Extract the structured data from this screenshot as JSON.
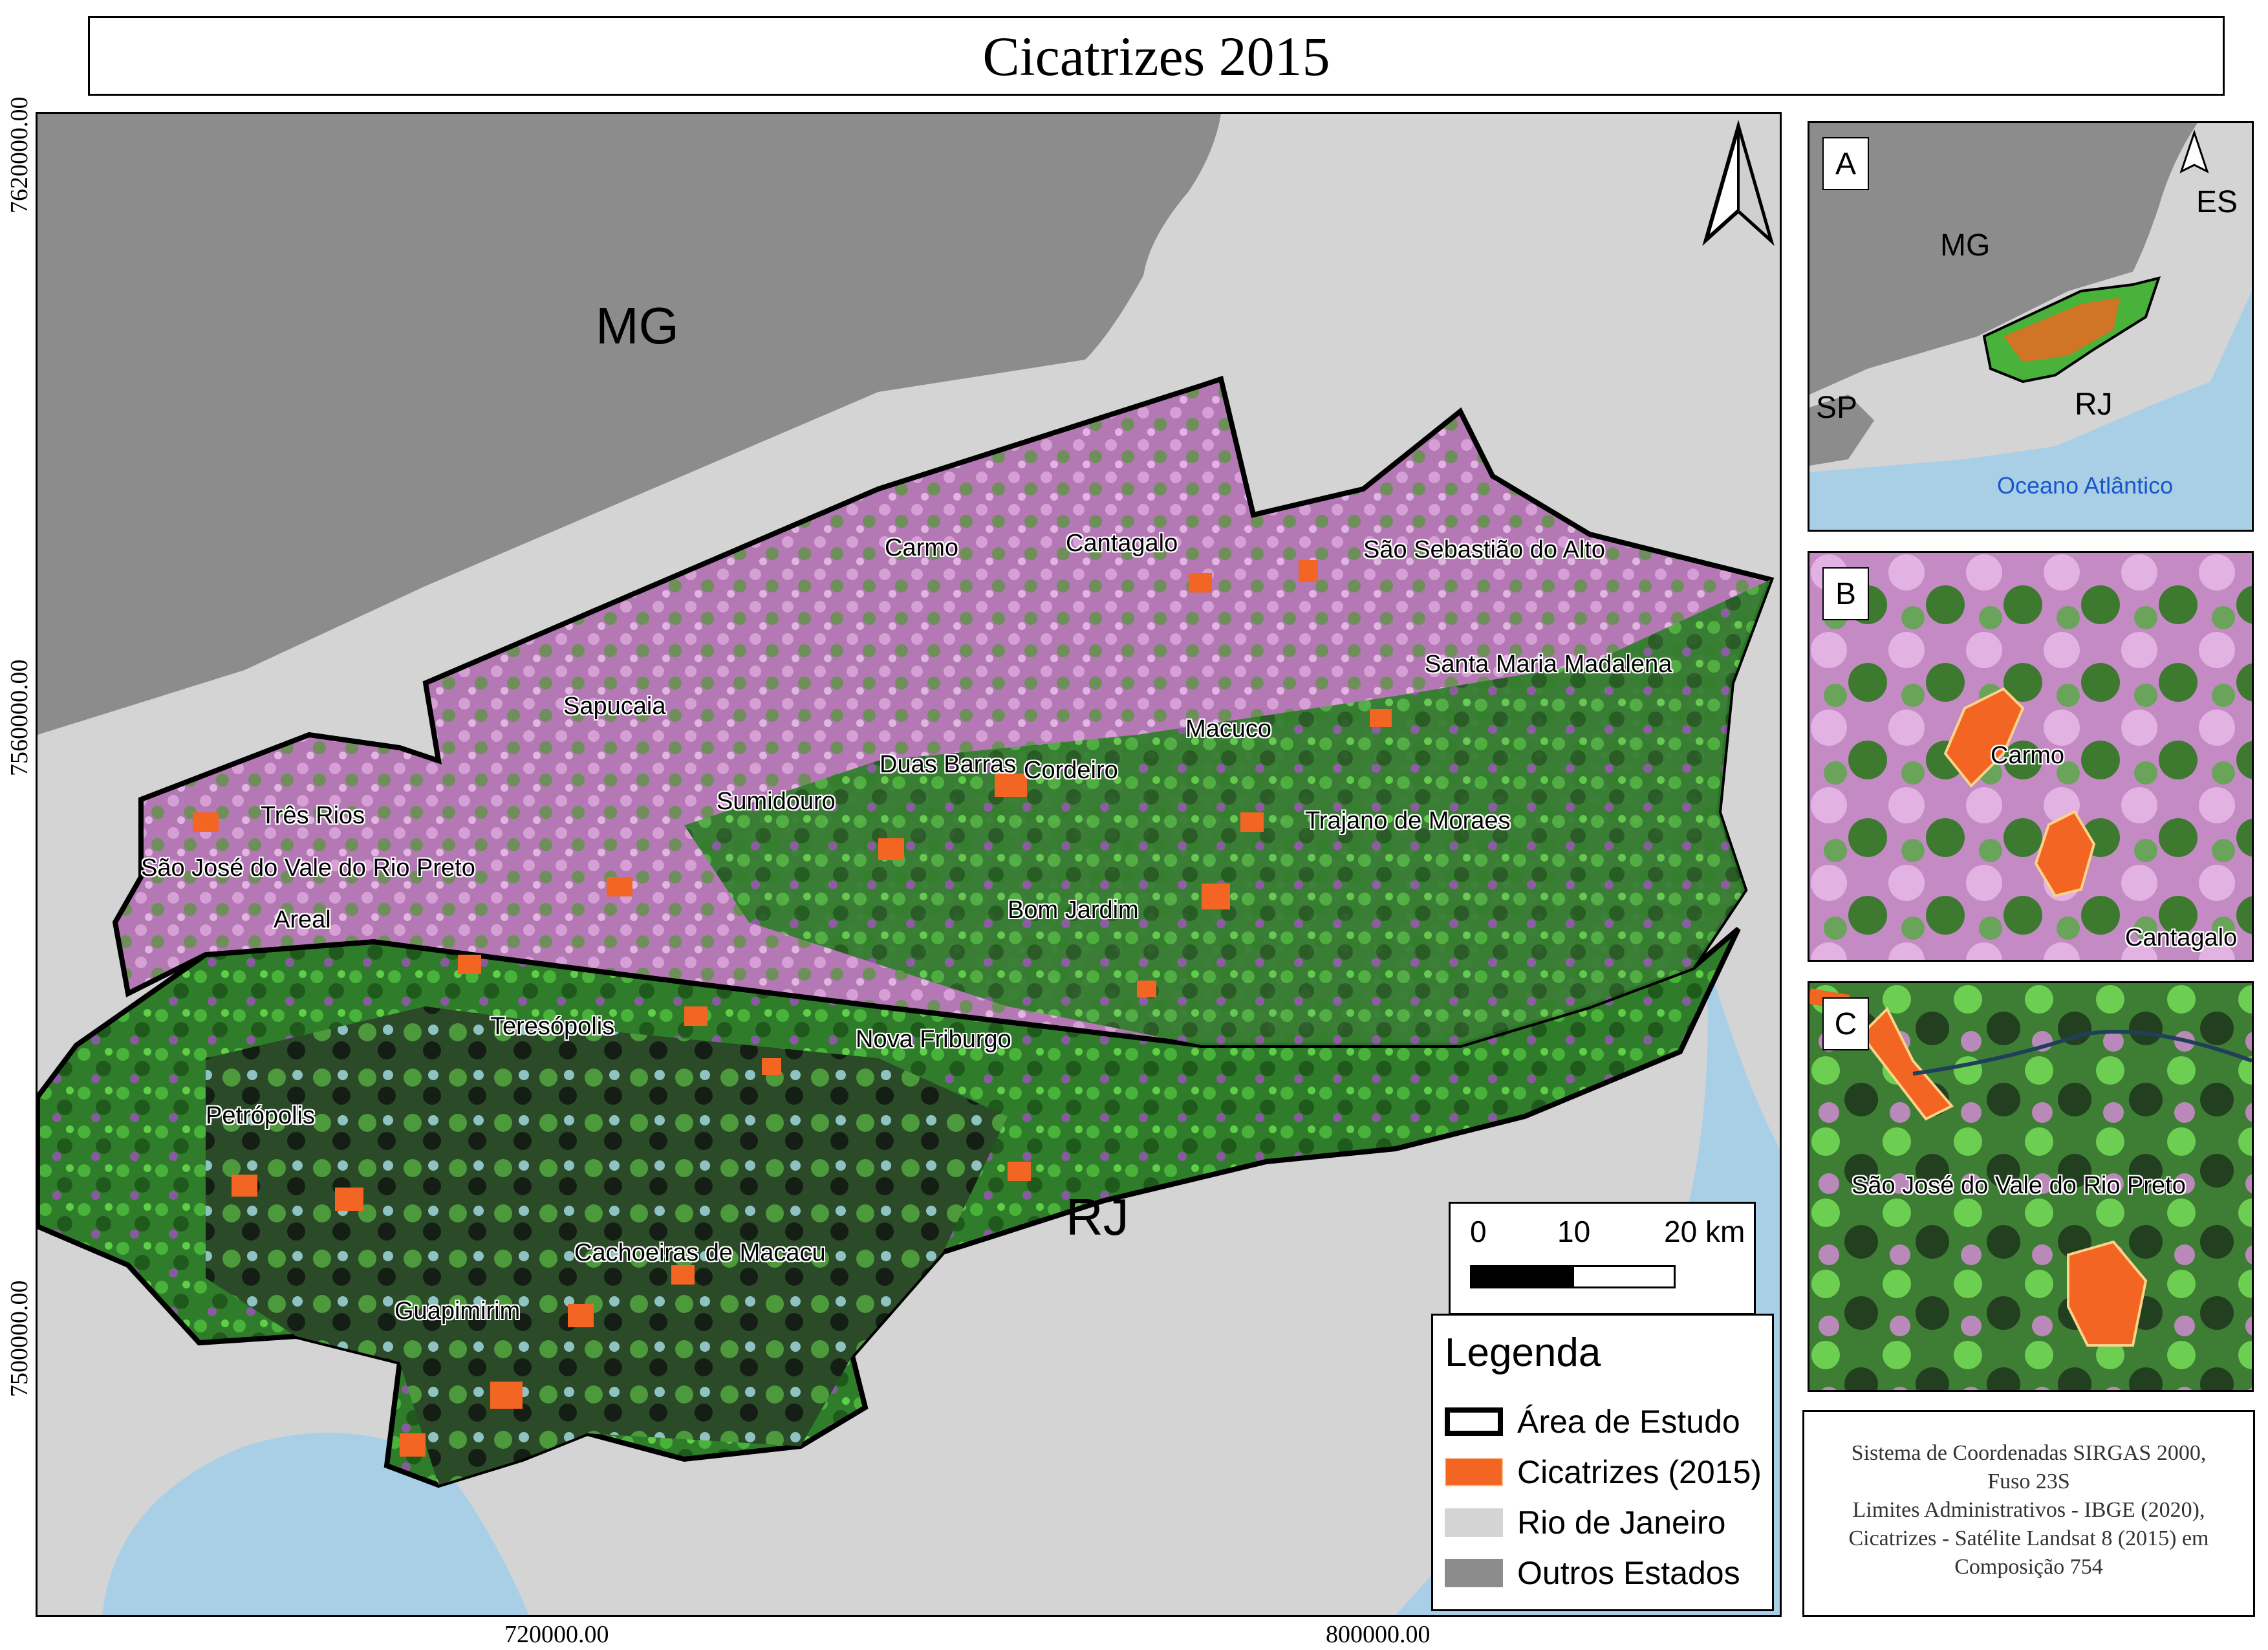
{
  "title": "Cicatrizes 2015",
  "axes": {
    "y_ticks": [
      "7620000.00",
      "7560000.00",
      "7500000.00"
    ],
    "x_ticks": [
      "720000.00",
      "800000.00"
    ]
  },
  "states": {
    "mg": "MG",
    "rj": "RJ"
  },
  "municipalities": [
    "Carmo",
    "Cantagalo",
    "São Sebastião do Alto",
    "Santa Maria Madalena",
    "Sapucaia",
    "Macuco",
    "Duas Barras",
    "Cordeiro",
    "Sumidouro",
    "Trajano de Moraes",
    "Três Rios",
    "São José do Vale do Rio Preto",
    "Areal",
    "Bom Jardim",
    "Teresópolis",
    "Nova Friburgo",
    "Petrópolis",
    "Cachoeiras de Macacu",
    "Guapimirim"
  ],
  "scale_bar": {
    "labels": [
      "0",
      "10",
      "20 km"
    ]
  },
  "legend": {
    "title": "Legenda",
    "items": [
      {
        "label": "Área de Estudo",
        "color": "#000000"
      },
      {
        "label": "Cicatrizes (2015)",
        "color": "#f26522"
      },
      {
        "label": "Rio de Janeiro",
        "color": "#d4d4d4"
      },
      {
        "label": "Outros Estados",
        "color": "#8c8c8c"
      }
    ]
  },
  "inset_a": {
    "letter": "A",
    "mg": "MG",
    "es": "ES",
    "sp": "SP",
    "rj": "RJ",
    "ocean": "Oceano Atlântico"
  },
  "inset_b": {
    "letter": "B",
    "labels": [
      "Carmo",
      "Cantagalo"
    ]
  },
  "inset_c": {
    "letter": "C",
    "labels": [
      "São José do Vale do Rio Preto"
    ]
  },
  "credits": [
    "Sistema de Coordenadas SIRGAS 2000,",
    "Fuso 23S",
    "Limites Administrativos - IBGE (2020),",
    "Cicatrizes - Satélite Landsat 8 (2015) em",
    "Composição 754"
  ],
  "colors": {
    "other_states": "#8c8c8c",
    "rio_de_janeiro": "#d4d4d4",
    "ocean": "#a8cfe6",
    "vegetation": "#2f8a2a",
    "pasture": "#c98bc9",
    "scars": "#f26522",
    "ocean_label": "#1a56c8"
  }
}
